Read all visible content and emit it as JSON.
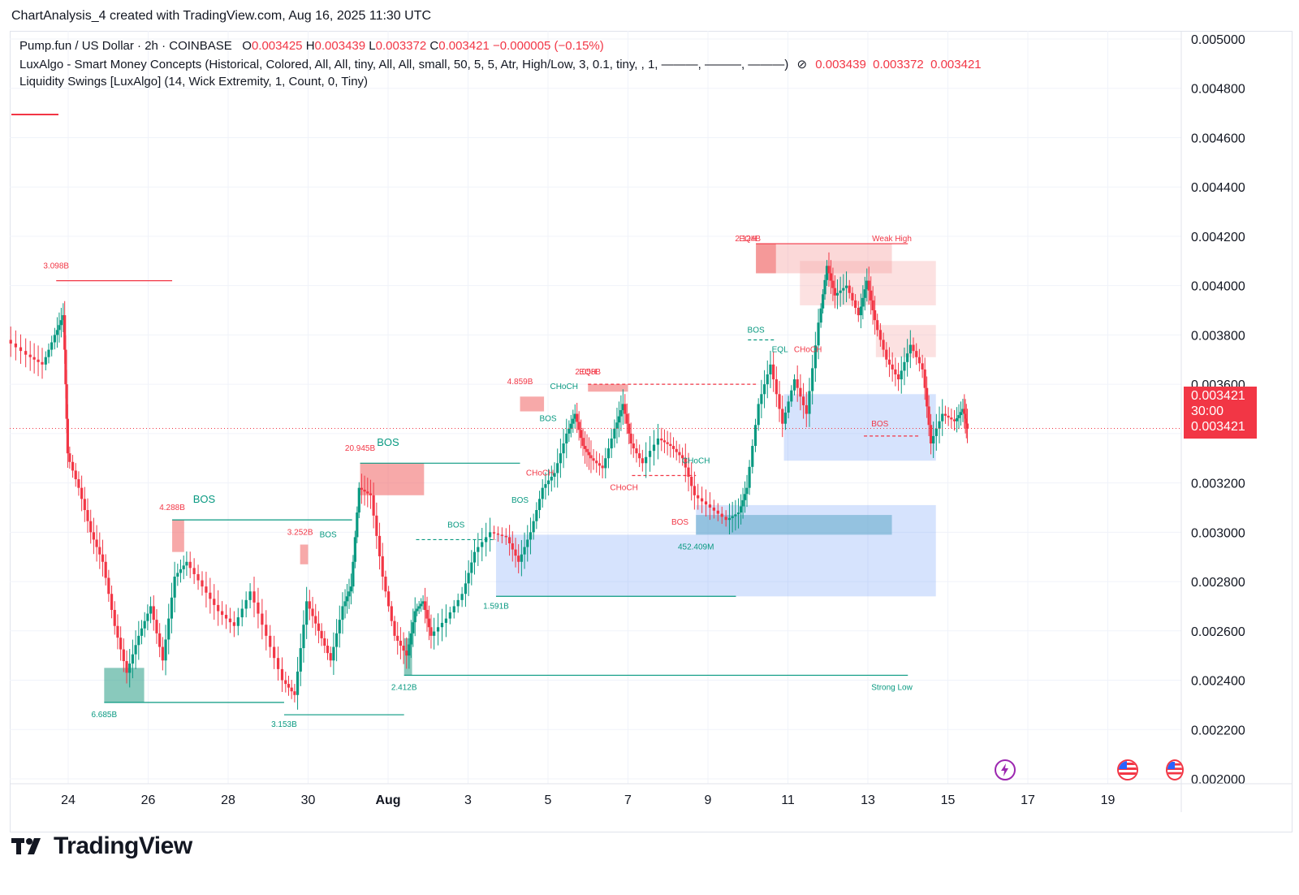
{
  "header": {
    "credit": "ChartAnalysis_4 created with TradingView.com, Aug 16, 2025 11:30 UTC"
  },
  "legend": {
    "symbol": "Pump.fun / US Dollar · 2h · COINBASE",
    "o_label": "O",
    "o_value": "0.003425",
    "h_label": "H",
    "h_value": "0.003439",
    "l_label": "L",
    "l_value": "0.003372",
    "c_label": "C",
    "c_value": "0.003421",
    "change": "−0.000005 (−0.15%)",
    "indicator_1": "LuxAlgo - Smart Money Concepts (Historical, Colored, All, All, tiny, All, All, small, 50, 5, 5, Atr, High/Low, 3, 0.1, tiny, , 1, ———, ———, ———)",
    "indicator_1_hidden_icon": "eye-slash-icon",
    "indicator_1_values": [
      "0.003439",
      "0.003372",
      "0.003421"
    ],
    "indicator_2": "Liquidity Swings [LuxAlgo] (14, Wick Extremity, 1, Count, 0, Tiny)"
  },
  "price_tag": {
    "price": "0.003421",
    "countdown": "30:00",
    "price2": "0.003421"
  },
  "branding": {
    "logo_text": "TradingView",
    "logo_icon": "tradingview-logo-icon"
  },
  "event_icons": [
    "lightning-icon",
    "us-flag-icon",
    "us-flag-icon"
  ],
  "colors": {
    "up": "#089981",
    "down": "#f23645",
    "bull_zone": "#5b8ff9",
    "bear_zone": "#f7a8a8"
  },
  "chart_data": {
    "type": "candlestick",
    "symbol": "Pump.fun / US Dollar",
    "interval": "2h",
    "exchange": "COINBASE",
    "x_ticks": [
      "24",
      "26",
      "28",
      "30",
      "Aug",
      "3",
      "5",
      "7",
      "9",
      "11",
      "13",
      "15",
      "17",
      "19"
    ],
    "y_ticks": [
      "0.005000",
      "0.004800",
      "0.004600",
      "0.004400",
      "0.004200",
      "0.004000",
      "0.003800",
      "0.003600",
      "0.003400",
      "0.003200",
      "0.003000",
      "0.002800",
      "0.002600",
      "0.002400",
      "0.002200",
      "0.002000"
    ],
    "ylim": [
      0.002,
      0.005
    ],
    "last_price": 0.003421,
    "trend_path": [
      [
        22.5,
        0.00378
      ],
      [
        23.0,
        0.00372
      ],
      [
        23.4,
        0.00368
      ],
      [
        23.7,
        0.0038
      ],
      [
        23.9,
        0.00388
      ],
      [
        24.0,
        0.00332
      ],
      [
        24.3,
        0.00318
      ],
      [
        24.6,
        0.003
      ],
      [
        24.9,
        0.00288
      ],
      [
        25.2,
        0.00262
      ],
      [
        25.5,
        0.00243
      ],
      [
        25.8,
        0.00258
      ],
      [
        26.1,
        0.0027
      ],
      [
        26.4,
        0.00248
      ],
      [
        26.7,
        0.00282
      ],
      [
        27.0,
        0.00288
      ],
      [
        27.4,
        0.00278
      ],
      [
        27.8,
        0.00268
      ],
      [
        28.2,
        0.00262
      ],
      [
        28.6,
        0.00276
      ],
      [
        29.0,
        0.00258
      ],
      [
        29.4,
        0.0024
      ],
      [
        29.7,
        0.00234
      ],
      [
        30.0,
        0.00272
      ],
      [
        30.3,
        0.0026
      ],
      [
        30.6,
        0.00248
      ],
      [
        30.9,
        0.0027
      ],
      [
        31.1,
        0.00278
      ],
      [
        31.3,
        0.00318
      ],
      [
        31.6,
        0.00315
      ],
      [
        31.9,
        0.00282
      ],
      [
        32.2,
        0.00258
      ],
      [
        32.5,
        0.0025
      ],
      [
        32.7,
        0.00268
      ],
      [
        32.9,
        0.00272
      ],
      [
        33.1,
        0.00258
      ],
      [
        33.5,
        0.00265
      ],
      [
        33.9,
        0.00275
      ],
      [
        34.2,
        0.00292
      ],
      [
        34.6,
        0.003
      ],
      [
        35.0,
        0.00298
      ],
      [
        35.3,
        0.00288
      ],
      [
        35.6,
        0.003
      ],
      [
        35.9,
        0.00318
      ],
      [
        36.2,
        0.00324
      ],
      [
        36.5,
        0.0034
      ],
      [
        36.7,
        0.00348
      ],
      [
        36.9,
        0.00335
      ],
      [
        37.1,
        0.0033
      ],
      [
        37.4,
        0.00326
      ],
      [
        37.7,
        0.00342
      ],
      [
        37.9,
        0.00352
      ],
      [
        38.1,
        0.00336
      ],
      [
        38.4,
        0.00328
      ],
      [
        38.8,
        0.00338
      ],
      [
        39.1,
        0.00335
      ],
      [
        39.4,
        0.0033
      ],
      [
        39.7,
        0.00315
      ],
      [
        40.1,
        0.0031
      ],
      [
        40.5,
        0.00305
      ],
      [
        40.8,
        0.00308
      ],
      [
        41.0,
        0.00318
      ],
      [
        41.3,
        0.00352
      ],
      [
        41.6,
        0.00368
      ],
      [
        41.9,
        0.00344
      ],
      [
        42.2,
        0.00362
      ],
      [
        42.5,
        0.00348
      ],
      [
        42.8,
        0.00385
      ],
      [
        43.0,
        0.00408
      ],
      [
        43.2,
        0.00396
      ],
      [
        43.5,
        0.004
      ],
      [
        43.8,
        0.00388
      ],
      [
        44.0,
        0.00402
      ],
      [
        44.2,
        0.00386
      ],
      [
        44.5,
        0.0037
      ],
      [
        44.8,
        0.00362
      ],
      [
        45.1,
        0.00376
      ],
      [
        45.4,
        0.00366
      ],
      [
        45.6,
        0.00336
      ],
      [
        45.9,
        0.00348
      ],
      [
        46.2,
        0.00345
      ],
      [
        46.4,
        0.0035
      ],
      [
        46.5,
        0.003421
      ]
    ],
    "structure_labels": [
      {
        "text": "BOS",
        "x": 27.4,
        "y": 0.00312,
        "color": "up",
        "size": "large"
      },
      {
        "text": "BOS",
        "x": 32.0,
        "y": 0.00335,
        "color": "up",
        "size": "large"
      },
      {
        "text": "BOS",
        "x": 30.5,
        "y": 0.00298,
        "color": "up"
      },
      {
        "text": "BOS",
        "x": 33.7,
        "y": 0.00302,
        "color": "up"
      },
      {
        "text": "BOS",
        "x": 35.3,
        "y": 0.00312,
        "color": "up"
      },
      {
        "text": "BOS",
        "x": 36.0,
        "y": 0.00345,
        "color": "up"
      },
      {
        "text": "CHoCH",
        "x": 36.4,
        "y": 0.00358,
        "color": "up"
      },
      {
        "text": "CHoCH",
        "x": 35.8,
        "y": 0.00323,
        "color": "down"
      },
      {
        "text": "CHoCH",
        "x": 37.9,
        "y": 0.00317,
        "color": "down"
      },
      {
        "text": "CHoCH",
        "x": 39.7,
        "y": 0.00328,
        "color": "up"
      },
      {
        "text": "BOS",
        "x": 39.3,
        "y": 0.00303,
        "color": "down"
      },
      {
        "text": "BOS",
        "x": 41.2,
        "y": 0.00381,
        "color": "up"
      },
      {
        "text": "EQL",
        "x": 41.8,
        "y": 0.00373,
        "color": "up"
      },
      {
        "text": "CHoCH",
        "x": 42.5,
        "y": 0.00373,
        "color": "down"
      },
      {
        "text": "BOS",
        "x": 44.3,
        "y": 0.00343,
        "color": "down"
      },
      {
        "text": "EQH",
        "x": 37.0,
        "y": 0.00364,
        "color": "down"
      },
      {
        "text": "EQH",
        "x": 41.0,
        "y": 0.00418,
        "color": "down"
      }
    ],
    "liquidity_labels": [
      {
        "text": "3.098B",
        "x": 23.7,
        "y": 0.00407,
        "color": "down"
      },
      {
        "text": "4.288B",
        "x": 26.6,
        "y": 0.00309,
        "color": "down"
      },
      {
        "text": "3.252B",
        "x": 29.8,
        "y": 0.00299,
        "color": "down"
      },
      {
        "text": "20.945B",
        "x": 31.3,
        "y": 0.00333,
        "color": "down"
      },
      {
        "text": "4.859B",
        "x": 35.3,
        "y": 0.0036,
        "color": "down"
      },
      {
        "text": "2.058B",
        "x": 37.0,
        "y": 0.00364,
        "color": "down"
      },
      {
        "text": "2.124B",
        "x": 41.0,
        "y": 0.00418,
        "color": "down"
      },
      {
        "text": "6.685B",
        "x": 24.9,
        "y": 0.00225,
        "color": "up"
      },
      {
        "text": "3.153B",
        "x": 29.4,
        "y": 0.00221,
        "color": "up"
      },
      {
        "text": "2.412B",
        "x": 32.4,
        "y": 0.00236,
        "color": "up"
      },
      {
        "text": "1.591B",
        "x": 34.7,
        "y": 0.00269,
        "color": "up"
      },
      {
        "text": "452.409M",
        "x": 39.7,
        "y": 0.00293,
        "color": "up"
      }
    ],
    "annotations": [
      {
        "text": "Weak High",
        "x": 44.6,
        "y": 0.00418,
        "color": "down"
      },
      {
        "text": "Strong Low",
        "x": 44.6,
        "y": 0.00236,
        "color": "up"
      }
    ]
  }
}
